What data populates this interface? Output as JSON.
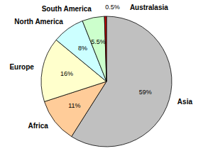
{
  "chart_data": {
    "type": "pie",
    "categories": [
      "Asia",
      "Africa",
      "Europe",
      "North America",
      "South America",
      "Australasia"
    ],
    "values": [
      59,
      11,
      16,
      8,
      5.5,
      0.5
    ],
    "value_labels": [
      "59%",
      "11%",
      "16%",
      "8%",
      "5.5%",
      "0.5%"
    ],
    "colors": [
      "#c0c0c0",
      "#ffcc99",
      "#ffffcc",
      "#ccffff",
      "#ccffcc",
      "#cc0000"
    ],
    "data_labels": true
  }
}
